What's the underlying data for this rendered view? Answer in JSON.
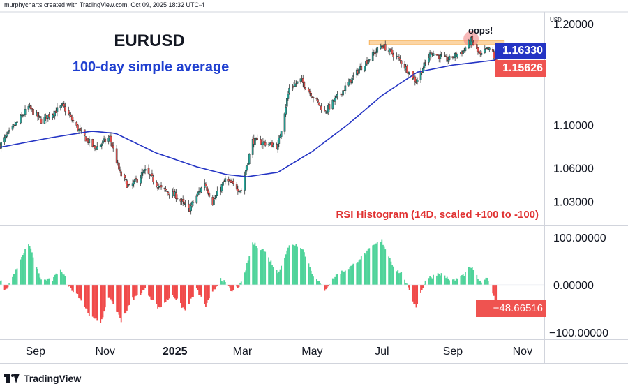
{
  "credit": "murphycharts created with TradingView.com, Oct 09, 2025 18:32 UTC-4",
  "brand": "TradingView",
  "currency_label": "USD",
  "colors": {
    "up": "#26a69a",
    "down": "#ef5350",
    "sma": "#2434c4",
    "hist_up": "#4fd39a",
    "hist_down": "#f04a4a",
    "resistance": "#f7b35b",
    "highlight": "#f28b8b",
    "title_sma": "#1f3fd0",
    "rsi_title": "#e03131"
  },
  "chart_data": {
    "type": "candlestick",
    "title": "EURUSD",
    "subtitle": "100-day simple average",
    "annotation": "oops!",
    "price_axis": {
      "labels": [
        "1.20000",
        "1.10000",
        "1.06000",
        "1.03000"
      ],
      "values": [
        1.2,
        1.1,
        1.06,
        1.03
      ],
      "scale": "log",
      "ylim": [
        1.01,
        1.21
      ]
    },
    "last_price": "1.15626",
    "sma_value": "1.16330",
    "resistance_level": 1.1805,
    "x_axis": {
      "labels": [
        "Sep",
        "Nov",
        "2025",
        "Mar",
        "May",
        "Jul",
        "Sep",
        "Nov"
      ],
      "date_range": [
        "2024-08-01",
        "2025-11-20"
      ]
    },
    "price_anchors": [
      [
        "2024-08-01",
        1.081
      ],
      [
        "2024-08-20",
        1.108
      ],
      [
        "2024-08-26",
        1.117
      ],
      [
        "2024-09-06",
        1.104
      ],
      [
        "2024-09-25",
        1.118
      ],
      [
        "2024-10-10",
        1.093
      ],
      [
        "2024-10-23",
        1.078
      ],
      [
        "2024-11-05",
        1.088
      ],
      [
        "2024-11-14",
        1.055
      ],
      [
        "2024-11-22",
        1.042
      ],
      [
        "2024-12-06",
        1.057
      ],
      [
        "2024-12-20",
        1.041
      ],
      [
        "2025-01-02",
        1.035
      ],
      [
        "2025-01-13",
        1.022
      ],
      [
        "2025-01-27",
        1.047
      ],
      [
        "2025-02-03",
        1.029
      ],
      [
        "2025-02-14",
        1.049
      ],
      [
        "2025-02-28",
        1.04
      ],
      [
        "2025-03-10",
        1.085
      ],
      [
        "2025-03-20",
        1.083
      ],
      [
        "2025-04-01",
        1.08
      ],
      [
        "2025-04-11",
        1.135
      ],
      [
        "2025-04-21",
        1.143
      ],
      [
        "2025-05-12",
        1.112
      ],
      [
        "2025-05-28",
        1.133
      ],
      [
        "2025-06-12",
        1.155
      ],
      [
        "2025-07-01",
        1.178
      ],
      [
        "2025-07-15",
        1.165
      ],
      [
        "2025-07-31",
        1.142
      ],
      [
        "2025-08-13",
        1.171
      ],
      [
        "2025-08-27",
        1.163
      ],
      [
        "2025-09-10",
        1.172
      ],
      [
        "2025-09-17",
        1.183
      ],
      [
        "2025-09-25",
        1.167
      ],
      [
        "2025-10-01",
        1.174
      ],
      [
        "2025-10-06",
        1.171
      ],
      [
        "2025-10-09",
        1.156
      ]
    ],
    "sma_anchors": [
      [
        "2024-08-01",
        1.079
      ],
      [
        "2024-09-15",
        1.088
      ],
      [
        "2024-10-20",
        1.094
      ],
      [
        "2024-11-10",
        1.092
      ],
      [
        "2024-12-15",
        1.074
      ],
      [
        "2025-01-20",
        1.061
      ],
      [
        "2025-02-15",
        1.054
      ],
      [
        "2025-03-05",
        1.052
      ],
      [
        "2025-04-01",
        1.056
      ],
      [
        "2025-05-01",
        1.075
      ],
      [
        "2025-06-01",
        1.1
      ],
      [
        "2025-07-01",
        1.128
      ],
      [
        "2025-08-01",
        1.151
      ],
      [
        "2025-09-01",
        1.158
      ],
      [
        "2025-10-09",
        1.163
      ]
    ],
    "rsi_histogram": {
      "title": "RSI Histogram (14D, scaled +100 to -100)",
      "axis_labels": [
        "100.00000",
        "0.00000",
        "−100.00000"
      ],
      "axis_values": [
        100,
        0,
        -100
      ],
      "ylim": [
        -115,
        125
      ],
      "last_value": "−48.66516",
      "anchors": [
        [
          "2024-08-01",
          10
        ],
        [
          "2024-08-06",
          -12
        ],
        [
          "2024-08-15",
          30
        ],
        [
          "2024-08-26",
          88
        ],
        [
          "2024-09-06",
          10
        ],
        [
          "2024-09-16",
          10
        ],
        [
          "2024-09-23",
          35
        ],
        [
          "2024-10-01",
          -5
        ],
        [
          "2024-10-08",
          -20
        ],
        [
          "2024-10-20",
          -70
        ],
        [
          "2024-10-28",
          -78
        ],
        [
          "2024-11-05",
          -25
        ],
        [
          "2024-11-15",
          -75
        ],
        [
          "2024-11-25",
          -30
        ],
        [
          "2024-12-06",
          -10
        ],
        [
          "2024-12-18",
          -50
        ],
        [
          "2024-12-30",
          -20
        ],
        [
          "2025-01-10",
          -55
        ],
        [
          "2025-01-20",
          -10
        ],
        [
          "2025-01-28",
          -45
        ],
        [
          "2025-02-10",
          15
        ],
        [
          "2025-02-20",
          -15
        ],
        [
          "2025-03-01",
          5
        ],
        [
          "2025-03-10",
          88
        ],
        [
          "2025-03-20",
          72
        ],
        [
          "2025-04-01",
          25
        ],
        [
          "2025-04-12",
          88
        ],
        [
          "2025-04-22",
          80
        ],
        [
          "2025-05-02",
          20
        ],
        [
          "2025-05-12",
          -10
        ],
        [
          "2025-05-22",
          20
        ],
        [
          "2025-06-05",
          40
        ],
        [
          "2025-06-25",
          85
        ],
        [
          "2025-07-01",
          92
        ],
        [
          "2025-07-12",
          35
        ],
        [
          "2025-07-20",
          20
        ],
        [
          "2025-07-27",
          -30
        ],
        [
          "2025-07-31",
          -45
        ],
        [
          "2025-08-08",
          10
        ],
        [
          "2025-08-20",
          25
        ],
        [
          "2025-09-01",
          8
        ],
        [
          "2025-09-10",
          20
        ],
        [
          "2025-09-17",
          38
        ],
        [
          "2025-09-25",
          5
        ],
        [
          "2025-10-01",
          12
        ],
        [
          "2025-10-05",
          -5
        ],
        [
          "2025-10-09",
          -48.7
        ]
      ]
    }
  }
}
